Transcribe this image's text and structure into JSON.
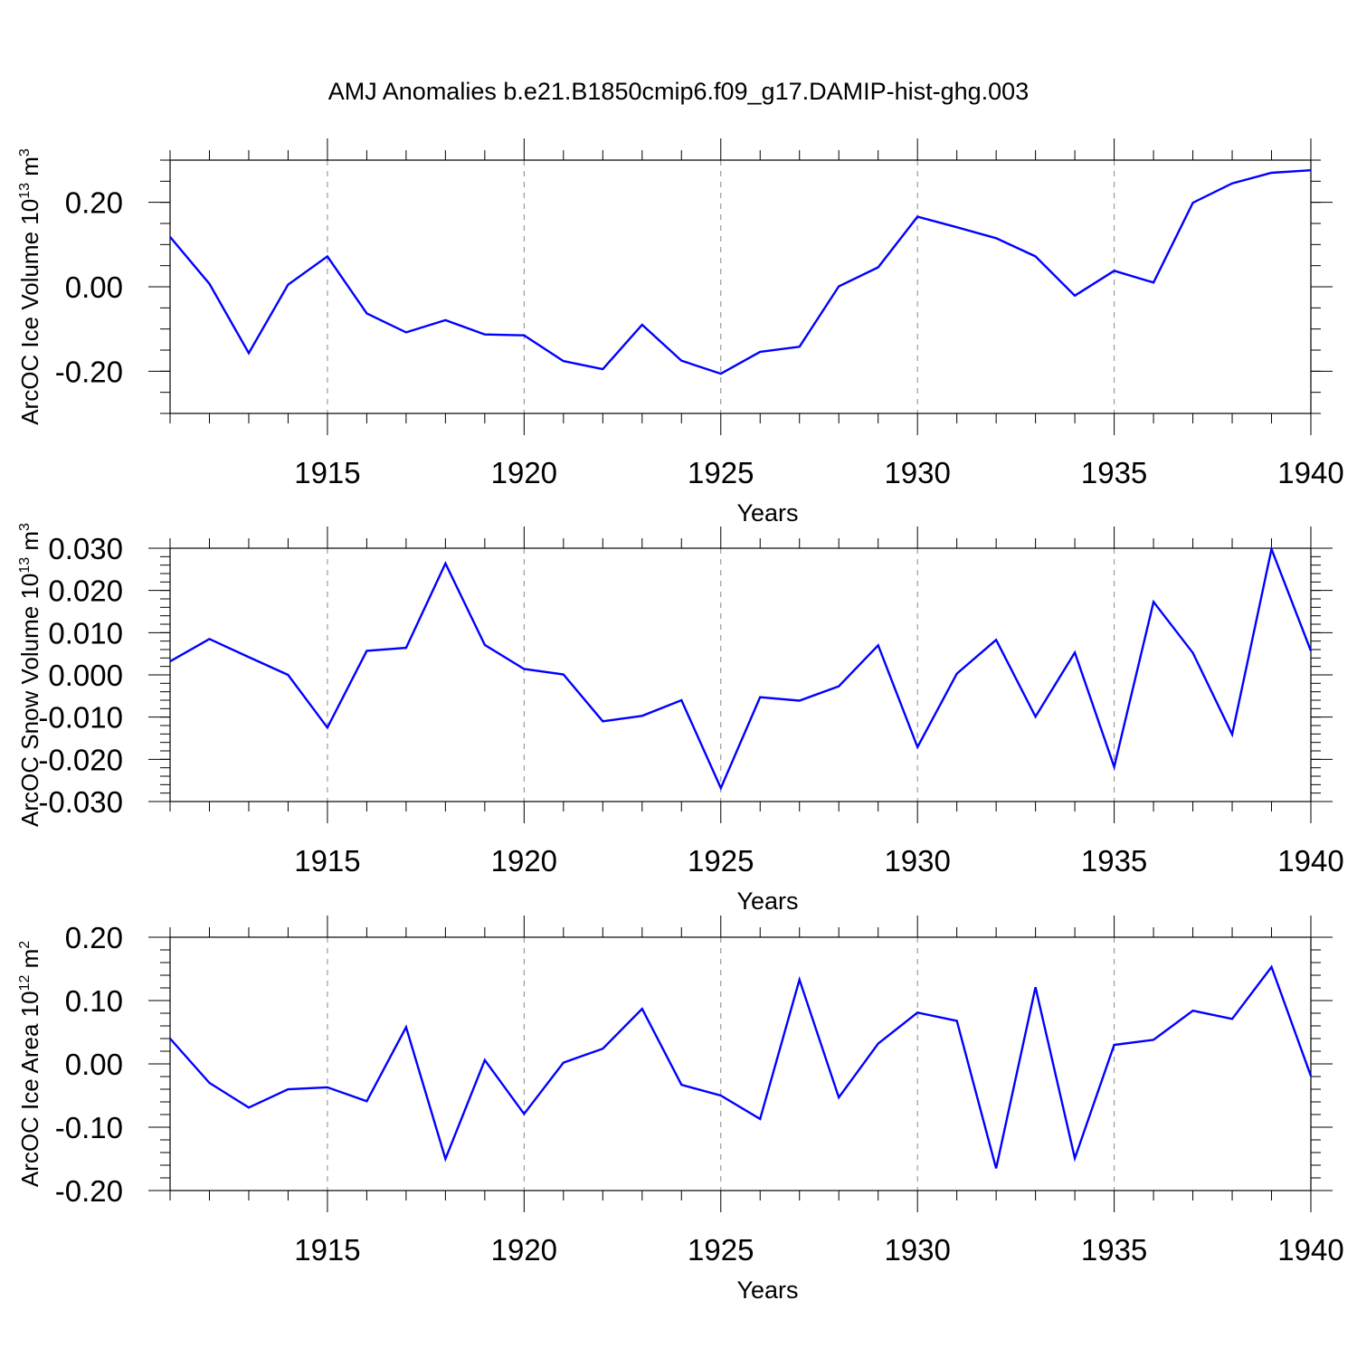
{
  "title": "AMJ Anomalies b.e21.B1850cmip6.f09_g17.DAMIP-hist-ghg.003",
  "colors": {
    "line": "#0000ff",
    "axis": "#000000",
    "grid": "#888888"
  },
  "chart_data": [
    {
      "type": "line",
      "ylabel": {
        "main": "ArcOC Ice Volume 10",
        "sup": "13",
        "tail": " m",
        "sup2": "3"
      },
      "xlabel": "Years",
      "xlim": [
        1911,
        1940
      ],
      "xticks": [
        1915,
        1920,
        1925,
        1930,
        1935,
        1940
      ],
      "xtick_labels": [
        "1915",
        "1920",
        "1925",
        "1930",
        "1935",
        "1940"
      ],
      "ylim": [
        -0.3,
        0.3
      ],
      "yticks": [
        -0.2,
        0.0,
        0.2
      ],
      "ytick_labels": [
        "-0.20",
        "0.00",
        "0.20"
      ],
      "yminor_step": 0.05,
      "x": [
        1911,
        1912,
        1913,
        1914,
        1915,
        1916,
        1917,
        1918,
        1919,
        1920,
        1921,
        1922,
        1923,
        1924,
        1925,
        1926,
        1927,
        1928,
        1929,
        1930,
        1931,
        1932,
        1933,
        1934,
        1935,
        1936,
        1937,
        1938,
        1939,
        1940
      ],
      "values": [
        0.118,
        0.007,
        -0.157,
        0.005,
        0.072,
        -0.063,
        -0.108,
        -0.079,
        -0.113,
        -0.115,
        -0.176,
        -0.195,
        -0.09,
        -0.175,
        -0.206,
        -0.154,
        -0.142,
        0.001,
        0.046,
        0.166,
        0.141,
        0.115,
        0.072,
        -0.021,
        0.038,
        0.01,
        0.199,
        0.245,
        0.27,
        0.276
      ]
    },
    {
      "type": "line",
      "ylabel": {
        "main": "ArcOC Snow Volume 10",
        "sup": "13",
        "tail": " m",
        "sup2": "3"
      },
      "xlabel": "Years",
      "xlim": [
        1911,
        1940
      ],
      "xticks": [
        1915,
        1920,
        1925,
        1930,
        1935,
        1940
      ],
      "xtick_labels": [
        "1915",
        "1920",
        "1925",
        "1930",
        "1935",
        "1940"
      ],
      "ylim": [
        -0.03,
        0.03
      ],
      "yticks": [
        -0.03,
        -0.02,
        -0.01,
        0.0,
        0.01,
        0.02,
        0.03
      ],
      "ytick_labels": [
        "-0.030",
        "-0.020",
        "-0.010",
        "0.000",
        "0.010",
        "0.020",
        "0.030"
      ],
      "yminor_step": 0.002,
      "x": [
        1911,
        1912,
        1913,
        1914,
        1915,
        1916,
        1917,
        1918,
        1919,
        1920,
        1921,
        1922,
        1923,
        1924,
        1925,
        1926,
        1927,
        1928,
        1929,
        1930,
        1931,
        1932,
        1933,
        1934,
        1935,
        1936,
        1937,
        1938,
        1939,
        1940
      ],
      "values": [
        0.0032,
        0.0085,
        0.0042,
        0.0,
        -0.0125,
        0.0057,
        0.0064,
        0.0264,
        0.0071,
        0.0014,
        0.0001,
        -0.011,
        -0.0097,
        -0.006,
        -0.0268,
        -0.0053,
        -0.0061,
        -0.0027,
        0.007,
        -0.0171,
        0.0003,
        0.0083,
        -0.0099,
        0.0053,
        -0.0218,
        0.0173,
        0.0052,
        -0.0141,
        0.0298,
        0.0057
      ]
    },
    {
      "type": "line",
      "ylabel": {
        "main": "ArcOC Ice Area 10",
        "sup": "12",
        "tail": " m",
        "sup2": "2"
      },
      "xlabel": "Years",
      "xlim": [
        1911,
        1940
      ],
      "xticks": [
        1915,
        1920,
        1925,
        1930,
        1935,
        1940
      ],
      "xtick_labels": [
        "1915",
        "1920",
        "1925",
        "1930",
        "1935",
        "1940"
      ],
      "ylim": [
        -0.2,
        0.2
      ],
      "yticks": [
        -0.2,
        -0.1,
        0.0,
        0.1,
        0.2
      ],
      "ytick_labels": [
        "-0.20",
        "-0.10",
        "0.00",
        "0.10",
        "0.20"
      ],
      "yminor_step": 0.02,
      "x": [
        1911,
        1912,
        1913,
        1914,
        1915,
        1916,
        1917,
        1918,
        1919,
        1920,
        1921,
        1922,
        1923,
        1924,
        1925,
        1926,
        1927,
        1928,
        1929,
        1930,
        1931,
        1932,
        1933,
        1934,
        1935,
        1936,
        1937,
        1938,
        1939,
        1940
      ],
      "values": [
        0.04,
        -0.03,
        -0.069,
        -0.04,
        -0.037,
        -0.059,
        0.058,
        -0.15,
        0.006,
        -0.079,
        0.002,
        0.024,
        0.087,
        -0.033,
        -0.05,
        -0.087,
        0.133,
        -0.053,
        0.032,
        0.081,
        0.068,
        -0.165,
        0.121,
        -0.149,
        0.03,
        0.038,
        0.084,
        0.071,
        0.153,
        -0.019
      ]
    }
  ]
}
